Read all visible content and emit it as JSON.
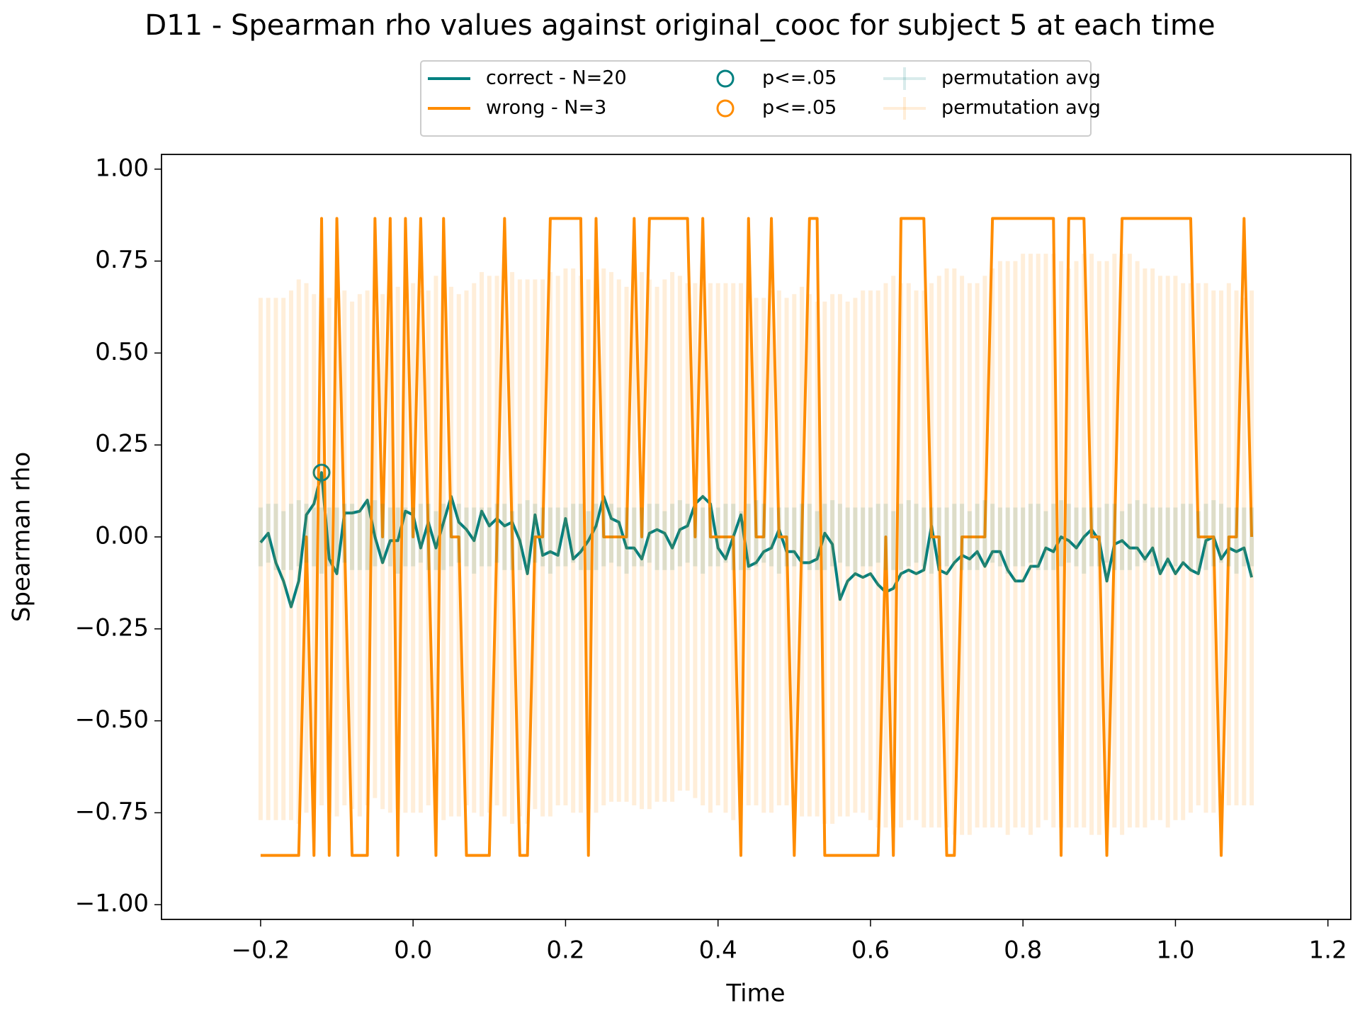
{
  "chart_data": {
    "type": "line",
    "title": "D11 - Spearman rho values against original_cooc for subject 5 at each time",
    "xlabel": "Time",
    "ylabel": "Spearman rho",
    "x": [
      -0.2,
      -0.19,
      -0.18,
      -0.17,
      -0.16,
      -0.15,
      -0.14,
      -0.13,
      -0.12,
      -0.11,
      -0.1,
      -0.09,
      -0.08,
      -0.07,
      -0.06,
      -0.05,
      -0.04,
      -0.03,
      -0.02,
      -0.01,
      0.0,
      0.01,
      0.02,
      0.03,
      0.04,
      0.05,
      0.06,
      0.07,
      0.08,
      0.09,
      0.1,
      0.11,
      0.12,
      0.13,
      0.14,
      0.15,
      0.16,
      0.17,
      0.18,
      0.19,
      0.2,
      0.21,
      0.22,
      0.23,
      0.24,
      0.25,
      0.26,
      0.27,
      0.28,
      0.29,
      0.3,
      0.31,
      0.32,
      0.33,
      0.34,
      0.35,
      0.36,
      0.37,
      0.38,
      0.39,
      0.4,
      0.41,
      0.42,
      0.43,
      0.44,
      0.45,
      0.46,
      0.47,
      0.48,
      0.49,
      0.5,
      0.51,
      0.52,
      0.53,
      0.54,
      0.55,
      0.56,
      0.57,
      0.58,
      0.59,
      0.6,
      0.61,
      0.62,
      0.63,
      0.64,
      0.65,
      0.66,
      0.67,
      0.68,
      0.69,
      0.7,
      0.71,
      0.72,
      0.73,
      0.74,
      0.75,
      0.76,
      0.77,
      0.78,
      0.79,
      0.8,
      0.81,
      0.82,
      0.83,
      0.84,
      0.85,
      0.86,
      0.87,
      0.88,
      0.89,
      0.9,
      0.91,
      0.92,
      0.93,
      0.94,
      0.95,
      0.96,
      0.97,
      0.98,
      0.99,
      1.0,
      1.01,
      1.02,
      1.03,
      1.04,
      1.05,
      1.06,
      1.07,
      1.08,
      1.09,
      1.1
    ],
    "series": [
      {
        "name": "correct - N=20",
        "color": "#008080",
        "kind": "line",
        "values": [
          -0.015,
          0.01,
          -0.07,
          -0.12,
          -0.19,
          -0.12,
          0.06,
          0.09,
          0.175,
          -0.06,
          -0.1,
          0.065,
          0.065,
          0.07,
          0.1,
          0.0,
          -0.07,
          -0.01,
          -0.01,
          0.07,
          0.06,
          -0.03,
          0.04,
          -0.03,
          0.04,
          0.11,
          0.04,
          0.02,
          -0.01,
          0.07,
          0.03,
          0.05,
          0.03,
          0.04,
          -0.01,
          -0.1,
          0.06,
          -0.05,
          -0.04,
          -0.05,
          0.05,
          -0.06,
          -0.04,
          -0.01,
          0.03,
          0.11,
          0.05,
          0.04,
          -0.03,
          -0.03,
          -0.06,
          0.01,
          0.02,
          0.01,
          -0.03,
          0.02,
          0.03,
          0.09,
          0.11,
          0.09,
          -0.03,
          -0.06,
          0.0,
          0.06,
          -0.08,
          -0.07,
          -0.04,
          -0.03,
          0.02,
          -0.04,
          -0.04,
          -0.07,
          -0.07,
          -0.06,
          0.01,
          -0.02,
          -0.17,
          -0.12,
          -0.1,
          -0.11,
          -0.1,
          -0.13,
          -0.15,
          -0.14,
          -0.1,
          -0.09,
          -0.1,
          -0.09,
          0.03,
          -0.09,
          -0.1,
          -0.07,
          -0.05,
          -0.06,
          -0.04,
          -0.08,
          -0.04,
          -0.04,
          -0.09,
          -0.12,
          -0.12,
          -0.08,
          -0.08,
          -0.03,
          -0.04,
          0.0,
          -0.01,
          -0.03,
          0.0,
          0.02,
          -0.01,
          -0.12,
          -0.02,
          -0.01,
          -0.03,
          -0.03,
          -0.06,
          -0.03,
          -0.1,
          -0.06,
          -0.1,
          -0.07,
          -0.09,
          -0.1,
          -0.01,
          0.0,
          -0.06,
          -0.03,
          -0.04,
          -0.03,
          -0.11
        ]
      },
      {
        "name": "wrong - N=3",
        "color": "#ff8c00",
        "kind": "line",
        "values": [
          -0.866,
          -0.866,
          -0.866,
          -0.866,
          -0.866,
          -0.866,
          0,
          -0.866,
          0.866,
          -0.866,
          0.866,
          0,
          -0.866,
          -0.866,
          -0.866,
          0.866,
          0,
          0.866,
          -0.866,
          0.866,
          0,
          0.866,
          0,
          -0.866,
          0.866,
          0,
          0,
          -0.866,
          -0.866,
          -0.866,
          -0.866,
          0,
          0.866,
          0,
          -0.866,
          -0.866,
          0,
          0,
          0.866,
          0.866,
          0.866,
          0.866,
          0.866,
          -0.866,
          0.866,
          0,
          0,
          0,
          0,
          0.866,
          0,
          0.866,
          0.866,
          0.866,
          0.866,
          0.866,
          0.866,
          0,
          0.866,
          0,
          0,
          0,
          0,
          -0.866,
          0.866,
          0,
          0,
          0.866,
          0,
          0,
          -0.866,
          0,
          0.866,
          0.866,
          -0.866,
          -0.866,
          -0.866,
          -0.866,
          -0.866,
          -0.866,
          -0.866,
          -0.866,
          0,
          -0.866,
          0.866,
          0.866,
          0.866,
          0.866,
          0,
          0,
          -0.866,
          -0.866,
          0,
          0,
          0,
          0,
          0.866,
          0.866,
          0.866,
          0.866,
          0.866,
          0.866,
          0.866,
          0.866,
          0.866,
          -0.866,
          0.866,
          0.866,
          0.866,
          0,
          0,
          -0.866,
          0,
          0.866,
          0.866,
          0.866,
          0.866,
          0.866,
          0.866,
          0.866,
          0.866,
          0.866,
          0.866,
          0,
          0,
          0,
          -0.866,
          0,
          0,
          0.866,
          0
        ]
      },
      {
        "name": "p<=.05",
        "color": "#008080",
        "kind": "marker",
        "x": [
          -0.12
        ],
        "values": [
          0.175
        ]
      },
      {
        "name": "p<=.05",
        "color": "#ff8c00",
        "kind": "marker",
        "x": [],
        "values": []
      },
      {
        "name": "permutation avg",
        "color": "#008080",
        "kind": "errorbar",
        "alpha": 0.15,
        "values": [
          0.0,
          0.01,
          0.0,
          -0.01,
          0.0,
          0.01,
          0.01,
          0.0,
          -0.01,
          0.0,
          0.0,
          0.01,
          0.0,
          -0.01,
          0.0,
          0.01,
          0.01,
          0.0,
          -0.01,
          0.0,
          0.0,
          0.01,
          0.0,
          -0.01,
          0.0,
          0.01,
          0.01,
          0.0,
          -0.01,
          0.0,
          0.0,
          0.01,
          0.0,
          -0.01,
          0.0,
          0.01,
          0.01,
          0.0,
          -0.01,
          0.0,
          0.0,
          0.01,
          0.0,
          -0.01,
          0.0,
          0.01,
          0.01,
          0.0,
          -0.01,
          0.0,
          0.0,
          0.01,
          0.0,
          -0.01,
          0.0,
          0.01,
          0.01,
          0.0,
          -0.01,
          0.0,
          0.0,
          0.01,
          0.0,
          -0.01,
          0.0,
          0.01,
          0.01,
          0.0,
          -0.01,
          0.0,
          0.0,
          0.01,
          0.0,
          -0.01,
          0.0,
          0.01,
          0.01,
          0.0,
          -0.01,
          0.0,
          0.0,
          0.01,
          0.0,
          -0.01,
          0.0,
          0.01,
          0.01,
          0.0,
          -0.01,
          0.0,
          0.0,
          0.01,
          0.0,
          -0.01,
          0.0,
          0.01,
          0.01,
          0.0,
          -0.01,
          0.0,
          0.0,
          0.01,
          0.0,
          -0.01,
          0.0,
          0.01,
          0.01,
          0.0,
          -0.01,
          0.0,
          0.0,
          0.01,
          0.0,
          -0.01,
          0.0,
          0.01,
          0.01,
          0.0,
          -0.01,
          0.0,
          0.0,
          0.01,
          0.0,
          -0.01,
          0.0,
          0.01,
          0.01,
          0.0,
          -0.01,
          0.0,
          0.0
        ],
        "errors": [
          0.08,
          0.08,
          0.09,
          0.08,
          0.09,
          0.09,
          0.08,
          0.08,
          0.09,
          0.08,
          0.08,
          0.08,
          0.09,
          0.08,
          0.09,
          0.09,
          0.08,
          0.08,
          0.09,
          0.08,
          0.08,
          0.08,
          0.09,
          0.08,
          0.09,
          0.09,
          0.08,
          0.08,
          0.09,
          0.08,
          0.08,
          0.08,
          0.09,
          0.08,
          0.09,
          0.09,
          0.08,
          0.08,
          0.09,
          0.08,
          0.08,
          0.08,
          0.09,
          0.08,
          0.09,
          0.09,
          0.08,
          0.08,
          0.09,
          0.08,
          0.08,
          0.08,
          0.09,
          0.08,
          0.09,
          0.09,
          0.08,
          0.08,
          0.09,
          0.08,
          0.08,
          0.08,
          0.09,
          0.08,
          0.09,
          0.09,
          0.08,
          0.08,
          0.09,
          0.08,
          0.08,
          0.08,
          0.09,
          0.08,
          0.09,
          0.09,
          0.08,
          0.08,
          0.09,
          0.08,
          0.08,
          0.08,
          0.09,
          0.08,
          0.09,
          0.09,
          0.08,
          0.08,
          0.09,
          0.08,
          0.08,
          0.08,
          0.09,
          0.08,
          0.09,
          0.09,
          0.08,
          0.08,
          0.09,
          0.08,
          0.08,
          0.08,
          0.09,
          0.08,
          0.09,
          0.09,
          0.08,
          0.08,
          0.09,
          0.08,
          0.08,
          0.08,
          0.09,
          0.08,
          0.09,
          0.09,
          0.08,
          0.08,
          0.09,
          0.08,
          0.08,
          0.08,
          0.09,
          0.08,
          0.09,
          0.09,
          0.08,
          0.08,
          0.09,
          0.08,
          0.08
        ]
      },
      {
        "name": "permutation avg",
        "color": "#ff8c00",
        "kind": "errorbar",
        "alpha": 0.15,
        "values": [
          -0.06,
          -0.06,
          -0.06,
          -0.06,
          -0.05,
          -0.04,
          -0.03,
          -0.04,
          -0.05,
          -0.05,
          -0.04,
          -0.03,
          -0.05,
          -0.05,
          -0.03,
          -0.02,
          -0.04,
          -0.03,
          -0.03,
          -0.02,
          -0.03,
          -0.04,
          -0.03,
          -0.02,
          -0.03,
          -0.04,
          -0.05,
          -0.03,
          -0.03,
          -0.02,
          -0.02,
          -0.01,
          -0.02,
          -0.03,
          -0.03,
          -0.04,
          -0.02,
          -0.03,
          -0.02,
          -0.01,
          0.0,
          -0.01,
          -0.02,
          -0.02,
          -0.01,
          0.0,
          0.0,
          -0.01,
          -0.02,
          -0.01,
          -0.01,
          -0.02,
          -0.02,
          -0.01,
          0.0,
          0.01,
          0.0,
          -0.01,
          -0.02,
          -0.03,
          -0.02,
          -0.03,
          -0.04,
          -0.02,
          -0.03,
          -0.04,
          -0.05,
          -0.04,
          -0.03,
          -0.04,
          -0.05,
          -0.04,
          -0.05,
          -0.06,
          -0.07,
          -0.06,
          -0.05,
          -0.06,
          -0.05,
          -0.04,
          -0.05,
          -0.06,
          -0.05,
          -0.04,
          -0.05,
          -0.04,
          -0.05,
          -0.06,
          -0.05,
          -0.04,
          -0.03,
          -0.04,
          -0.05,
          -0.06,
          -0.05,
          -0.04,
          -0.03,
          -0.02,
          -0.03,
          -0.02,
          -0.01,
          -0.02,
          -0.01,
          0.0,
          -0.01,
          -0.02,
          -0.03,
          -0.02,
          -0.01,
          -0.02,
          -0.03,
          -0.02,
          -0.01,
          -0.02,
          -0.01,
          -0.02,
          -0.03,
          -0.02,
          -0.03,
          -0.04,
          -0.03,
          -0.04,
          -0.03,
          -0.02,
          -0.03,
          -0.04,
          -0.03,
          -0.02,
          -0.03,
          -0.04,
          -0.03
        ],
        "errors": [
          0.71,
          0.71,
          0.71,
          0.71,
          0.72,
          0.74,
          0.72,
          0.7,
          0.68,
          0.7,
          0.72,
          0.7,
          0.69,
          0.71,
          0.7,
          0.69,
          0.7,
          0.72,
          0.71,
          0.73,
          0.72,
          0.71,
          0.7,
          0.73,
          0.74,
          0.72,
          0.71,
          0.7,
          0.72,
          0.74,
          0.73,
          0.72,
          0.74,
          0.75,
          0.73,
          0.74,
          0.72,
          0.73,
          0.74,
          0.72,
          0.73,
          0.74,
          0.73,
          0.72,
          0.74,
          0.73,
          0.72,
          0.71,
          0.7,
          0.72,
          0.73,
          0.72,
          0.7,
          0.71,
          0.72,
          0.7,
          0.69,
          0.7,
          0.71,
          0.72,
          0.71,
          0.72,
          0.73,
          0.71,
          0.7,
          0.69,
          0.7,
          0.71,
          0.7,
          0.69,
          0.71,
          0.72,
          0.71,
          0.7,
          0.71,
          0.72,
          0.71,
          0.7,
          0.7,
          0.71,
          0.72,
          0.73,
          0.74,
          0.75,
          0.74,
          0.73,
          0.72,
          0.73,
          0.74,
          0.75,
          0.76,
          0.77,
          0.76,
          0.75,
          0.74,
          0.75,
          0.76,
          0.77,
          0.78,
          0.77,
          0.78,
          0.79,
          0.78,
          0.77,
          0.78,
          0.77,
          0.76,
          0.77,
          0.78,
          0.79,
          0.78,
          0.77,
          0.78,
          0.79,
          0.78,
          0.77,
          0.76,
          0.75,
          0.74,
          0.75,
          0.74,
          0.73,
          0.72,
          0.71,
          0.72,
          0.71,
          0.7,
          0.71,
          0.7,
          0.69,
          0.7
        ]
      }
    ],
    "xlim": [
      -0.33,
      1.23
    ],
    "ylim": [
      -1.04,
      1.04
    ],
    "xticks": [
      {
        "value": -0.2,
        "label": "−0.2"
      },
      {
        "value": 0.0,
        "label": "0.0"
      },
      {
        "value": 0.2,
        "label": "0.2"
      },
      {
        "value": 0.4,
        "label": "0.4"
      },
      {
        "value": 0.6,
        "label": "0.6"
      },
      {
        "value": 0.8,
        "label": "0.8"
      },
      {
        "value": 1.0,
        "label": "1.0"
      },
      {
        "value": 1.2,
        "label": "1.2"
      }
    ],
    "yticks": [
      {
        "value": -1.0,
        "label": "−1.00"
      },
      {
        "value": -0.75,
        "label": "−0.75"
      },
      {
        "value": -0.5,
        "label": "−0.50"
      },
      {
        "value": -0.25,
        "label": "−0.25"
      },
      {
        "value": 0.0,
        "label": "0.00"
      },
      {
        "value": 0.25,
        "label": "0.25"
      },
      {
        "value": 0.5,
        "label": "0.50"
      },
      {
        "value": 0.75,
        "label": "0.75"
      },
      {
        "value": 1.0,
        "label": "1.00"
      }
    ],
    "grid": false,
    "legend": {
      "loc": "upper center",
      "ncol": 3
    }
  }
}
